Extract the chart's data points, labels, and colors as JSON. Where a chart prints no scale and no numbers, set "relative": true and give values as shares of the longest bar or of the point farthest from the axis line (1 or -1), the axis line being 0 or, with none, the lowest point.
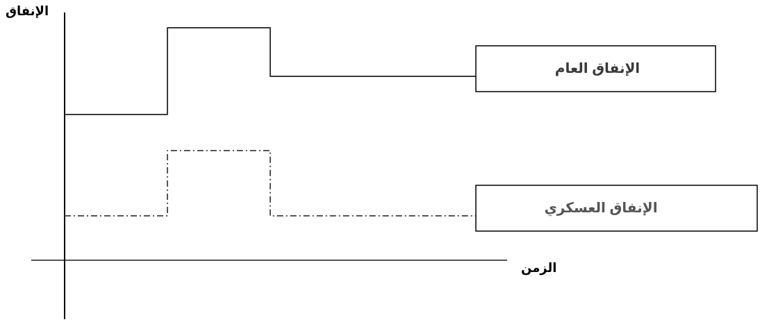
{
  "chart_data": {
    "type": "step",
    "relative": true,
    "ylabel": "الإنفاق",
    "xlabel": "الزمن",
    "categories": [
      null,
      null,
      null,
      null,
      null
    ],
    "series": [
      {
        "name": "الإنفاق العام",
        "color": "#3a3a3a",
        "line_style": "solid",
        "values": [
          0.627,
          1,
          0.791,
          0.791,
          0.791
        ]
      },
      {
        "name": "الإنفاق العسكري",
        "color": "#555555",
        "line_style": "dashed",
        "values": [
          0.191,
          0.472,
          0.191,
          0.191,
          0.191
        ]
      }
    ]
  }
}
